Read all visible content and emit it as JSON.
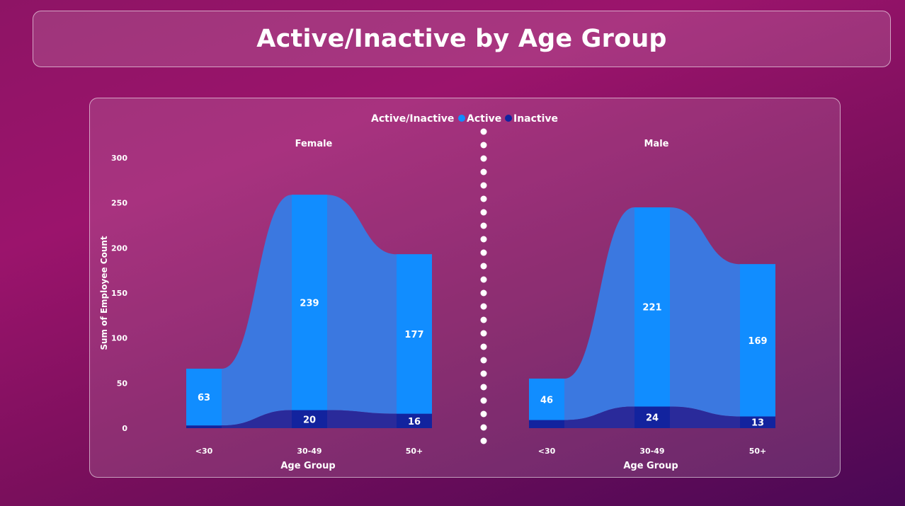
{
  "page": {
    "title": "Active/Inactive by Age Group"
  },
  "chart_data": {
    "type": "bar",
    "stacked": true,
    "legend": {
      "title": "Active/Inactive",
      "placement": "top-center",
      "entries": [
        {
          "name": "Active",
          "color": "#118dff"
        },
        {
          "name": "Inactive",
          "color": "#12239e"
        }
      ]
    },
    "colors": {
      "ribbon_active": "#3b78e0",
      "ribbon_inactive": "#2a2a9a"
    },
    "ylabel": "Sum of Employee Count",
    "xlabel": "Age Group",
    "ylim": [
      0,
      300
    ],
    "yticks": [
      0,
      50,
      100,
      150,
      200,
      250,
      300
    ],
    "categories": [
      "<30",
      "30-49",
      "50+"
    ],
    "panels": [
      {
        "name": "Female",
        "series": [
          {
            "name": "Inactive",
            "values": [
              3,
              20,
              16
            ]
          },
          {
            "name": "Active",
            "values": [
              63,
              239,
              177
            ]
          }
        ],
        "labels": {
          "Inactive": [
            "",
            "20",
            "16"
          ],
          "Active": [
            "63",
            "239",
            "177"
          ]
        }
      },
      {
        "name": "Male",
        "series": [
          {
            "name": "Inactive",
            "values": [
              9,
              24,
              13
            ]
          },
          {
            "name": "Active",
            "values": [
              46,
              221,
              169
            ]
          }
        ],
        "labels": {
          "Inactive": [
            "",
            "24",
            "13"
          ],
          "Active": [
            "46",
            "221",
            "169"
          ]
        }
      }
    ]
  }
}
